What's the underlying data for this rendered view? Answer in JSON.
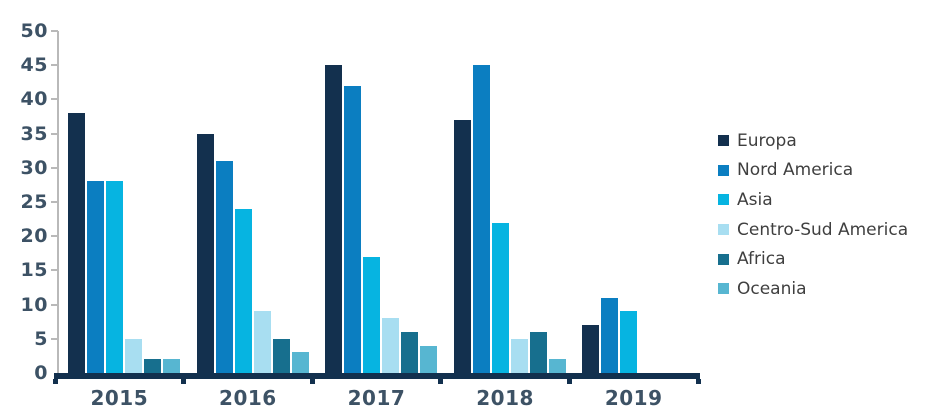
{
  "chart_data": {
    "type": "bar",
    "title": "",
    "xlabel": "",
    "ylabel": "",
    "categories": [
      "2015",
      "2016",
      "2017",
      "2018",
      "2019"
    ],
    "series": [
      {
        "name": "Europa",
        "color": "#13304e",
        "values": [
          38,
          35,
          45,
          37,
          7
        ]
      },
      {
        "name": "Nord America",
        "color": "#0b7ec1",
        "values": [
          28,
          31,
          42,
          45,
          11
        ]
      },
      {
        "name": "Asia",
        "color": "#06b4e1",
        "values": [
          28,
          24,
          17,
          22,
          9
        ]
      },
      {
        "name": "Centro-Sud America",
        "color": "#a8def1",
        "values": [
          5,
          9,
          8,
          5,
          0
        ]
      },
      {
        "name": "Africa",
        "color": "#176f8e",
        "values": [
          2,
          5,
          6,
          6,
          0
        ]
      },
      {
        "name": "Oceania",
        "color": "#57b6d1",
        "values": [
          2,
          3,
          4,
          2,
          0
        ]
      }
    ],
    "ylim": [
      0,
      50
    ],
    "ytick_step": 5,
    "ytick_labels": [
      "0",
      "5",
      "10",
      "15",
      "20",
      "25",
      "30",
      "35",
      "40",
      "45",
      "50"
    ],
    "grid": false,
    "legend_position": "right"
  },
  "colors": {
    "axis_line": "#12304e",
    "gridline_axis": "#b9b9b9",
    "tick_label": "#3d5265",
    "legend_text": "#3f3f3f"
  }
}
